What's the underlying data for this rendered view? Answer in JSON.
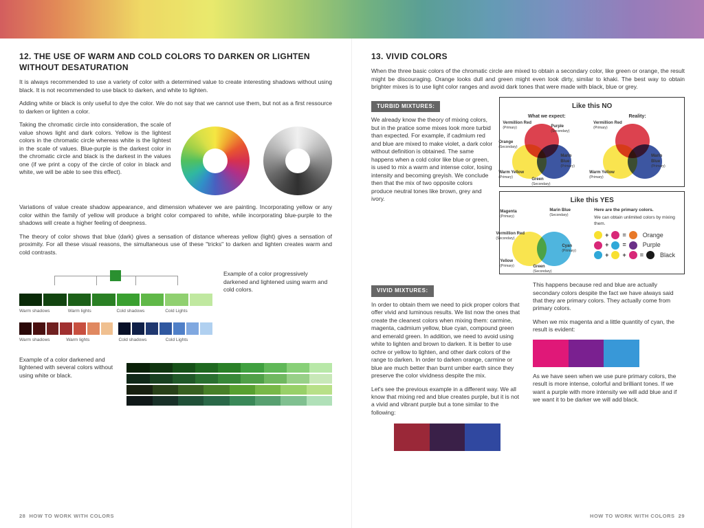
{
  "left": {
    "heading": "12. THE USE OF WARM AND COLD COLORS TO DARKEN OR LIGHTEN WITHOUT DESATURATION",
    "p1": "It is always recommended to use a variety of color with a determined value to create interesting shadows without using black. It is not recommended to use black to darken, and white to lighten.",
    "p2": "Adding white or black is only useful to dye the color. We do not say that we cannot use them, but not as a first ressource to darken or lighten a color.",
    "p3": "Taking the chromatic circle into consideration, the scale of value shows light and dark colors. Yellow is the lightest colors in the chromatic circle whereas white is the lightest in the scale of values. Blue-purple is the darkest color in the chromatic circle and black is the darkest in the values one (if we print a copy of the circle of color in black and white, we will be able to see this effect).",
    "p4": "Variations of value create shadow appearance, and dimension whatever we are painting. Incorporating yellow or any color within the family of yellow will produce a bright color compared to white, while incorporating blue-purple to the shadows will create a higher feeling of deepness.",
    "p5": "The theory of color shows that blue (dark) gives a sensation of distance whereas yellow (light) gives a sensation of proximity. For all these visual reasons, the simultaneous use of these \"tricks\" to darken and lighten creates warm and cold contrasts.",
    "example1": "Example of a color progressively darkened and lightened using warm and cold colors.",
    "example2": "Example of a color darkened and lightened with several colors without using white or black.",
    "labels": {
      "ws": "Warm shadows",
      "wl": "Warm lights",
      "cs": "Cold shadows",
      "cl": "Cold Lights"
    },
    "green_grad": [
      "#0a2a08",
      "#124410",
      "#1c6018",
      "#2a8024",
      "#3aa030",
      "#60b848",
      "#90d070",
      "#c0e8a0"
    ],
    "red_grad": [
      "#2a0808",
      "#4a1010",
      "#702020",
      "#a03030",
      "#c85040",
      "#e08860",
      "#f0c090"
    ],
    "blue_grad": [
      "#081028",
      "#102048",
      "#203870",
      "#3058a0",
      "#5080c8",
      "#80a8e0",
      "#b0d0f0"
    ],
    "green_rows": [
      [
        "#0a2008",
        "#103510",
        "#165018",
        "#1f6820",
        "#2a8028",
        "#40a040",
        "#60b858",
        "#88d078",
        "#b8e8a8"
      ],
      [
        "#102818",
        "#184020",
        "#205828",
        "#2a7030",
        "#388838",
        "#50a048",
        "#70b860",
        "#98d088",
        "#c8e8b8"
      ],
      [
        "#182010",
        "#284018",
        "#386020",
        "#488028",
        "#58a030",
        "#78b848",
        "#98d068",
        "#b8e088"
      ],
      [
        "#101818",
        "#183028",
        "#205038",
        "#2a6848",
        "#3a8858",
        "#58a070",
        "#80c090",
        "#b0e0b8"
      ]
    ],
    "pageno": "28",
    "book": "HOW TO WORK WITH COLORS"
  },
  "right": {
    "heading": "13. VIVID COLORS",
    "intro": "When the three basic colors of the chromatic circle are mixed to obtain a secondary color, like green or orange, the result might be discouraging. Orange looks dull and green might even look dirty, similar to khaki. The best way to obtain brighter mixes is to use light color ranges and avoid dark tones that were made with black, blue or grey.",
    "turbid_h": "TURBID MIXTURES:",
    "turbid": "We already know the theory of mixing colors, but in the pratice some mixes look more turbid than expected. For example, if cadmium red and blue are mixed to make violet, a dark color without definition is obtained. The same happens when a cold color like blue or green, is used to mix a warm and intense color, losing intensity and becoming greyish. We conclude then that the mix of two opposite colors produce neutral tones like brown, grey and ivory.",
    "vivid_h": "VIVID MIXTURES:",
    "vivid1": "In order to obtain them we need to pick proper colors that offer vivid and luminous results. We list now the ones that create the cleanest colors when mixing them: carmine, magenta, cadmium yellow, blue cyan, compound green and emerald green. In addition, we need to avoid using white to lighten and brown to darken. It is better to use ochre or yellow to lighten, and other dark colors of the range to darken. In order to darken orange, carmine or blue are much better than burnt umber earth since they preserve the color vividness despite the mix.",
    "vivid2": "Let's see the previous example in a different way. We all know that mixing red and blue creates purple, but it is not a vivid and vibrant purple but a tone similar to the following:",
    "happens": "This happens because red and blue are actually secondary colors despite the fact we have always said that they are primary colors. They actually come from primary colors.",
    "mcyan": "When we mix magenta and a little quantity of cyan, the result is evident:",
    "seen": "As we have seen when we use pure primary colors, the result is more intense, colorful and brilliant tones. If we want a purple with more intensity we will add blue and if we want it to be darker we will add black.",
    "no_title": "Like this NO",
    "expect": "What we expect:",
    "reality": "Reality:",
    "yes_title": "Like this YES",
    "yes_note": "Here are the primary colors.",
    "yes_note2": "We can obtain unlimited colors by mixing them.",
    "venn": {
      "vr": "Vermillion Red",
      "wy": "Warm Yellow",
      "mb": "Marin Blue",
      "or": "Orange",
      "gr": "Green",
      "pu": "Purple",
      "mg": "Magenta",
      "cy": "Cyan",
      "ye": "Yellow",
      "pri": "(Primary)",
      "sec": "(Secondary)"
    },
    "mix": {
      "orange": "Orange",
      "purple": "Purple",
      "black": "Black"
    },
    "c": {
      "red": "#d62030",
      "yellow": "#f8e030",
      "blue": "#1a3890",
      "orange": "#e87828",
      "green": "#2a9040",
      "purple": "#6a3088",
      "magenta": "#d82878",
      "cyan": "#30a8d8",
      "vividmag": "#e01878",
      "vividpur": "#7a2090",
      "vividcyan": "#3898d8",
      "dullred": "#9a2838",
      "dullpur": "#3a2048",
      "dullblue": "#3048a0"
    },
    "pageno": "29",
    "book": "HOW TO WORK WITH COLORS"
  }
}
